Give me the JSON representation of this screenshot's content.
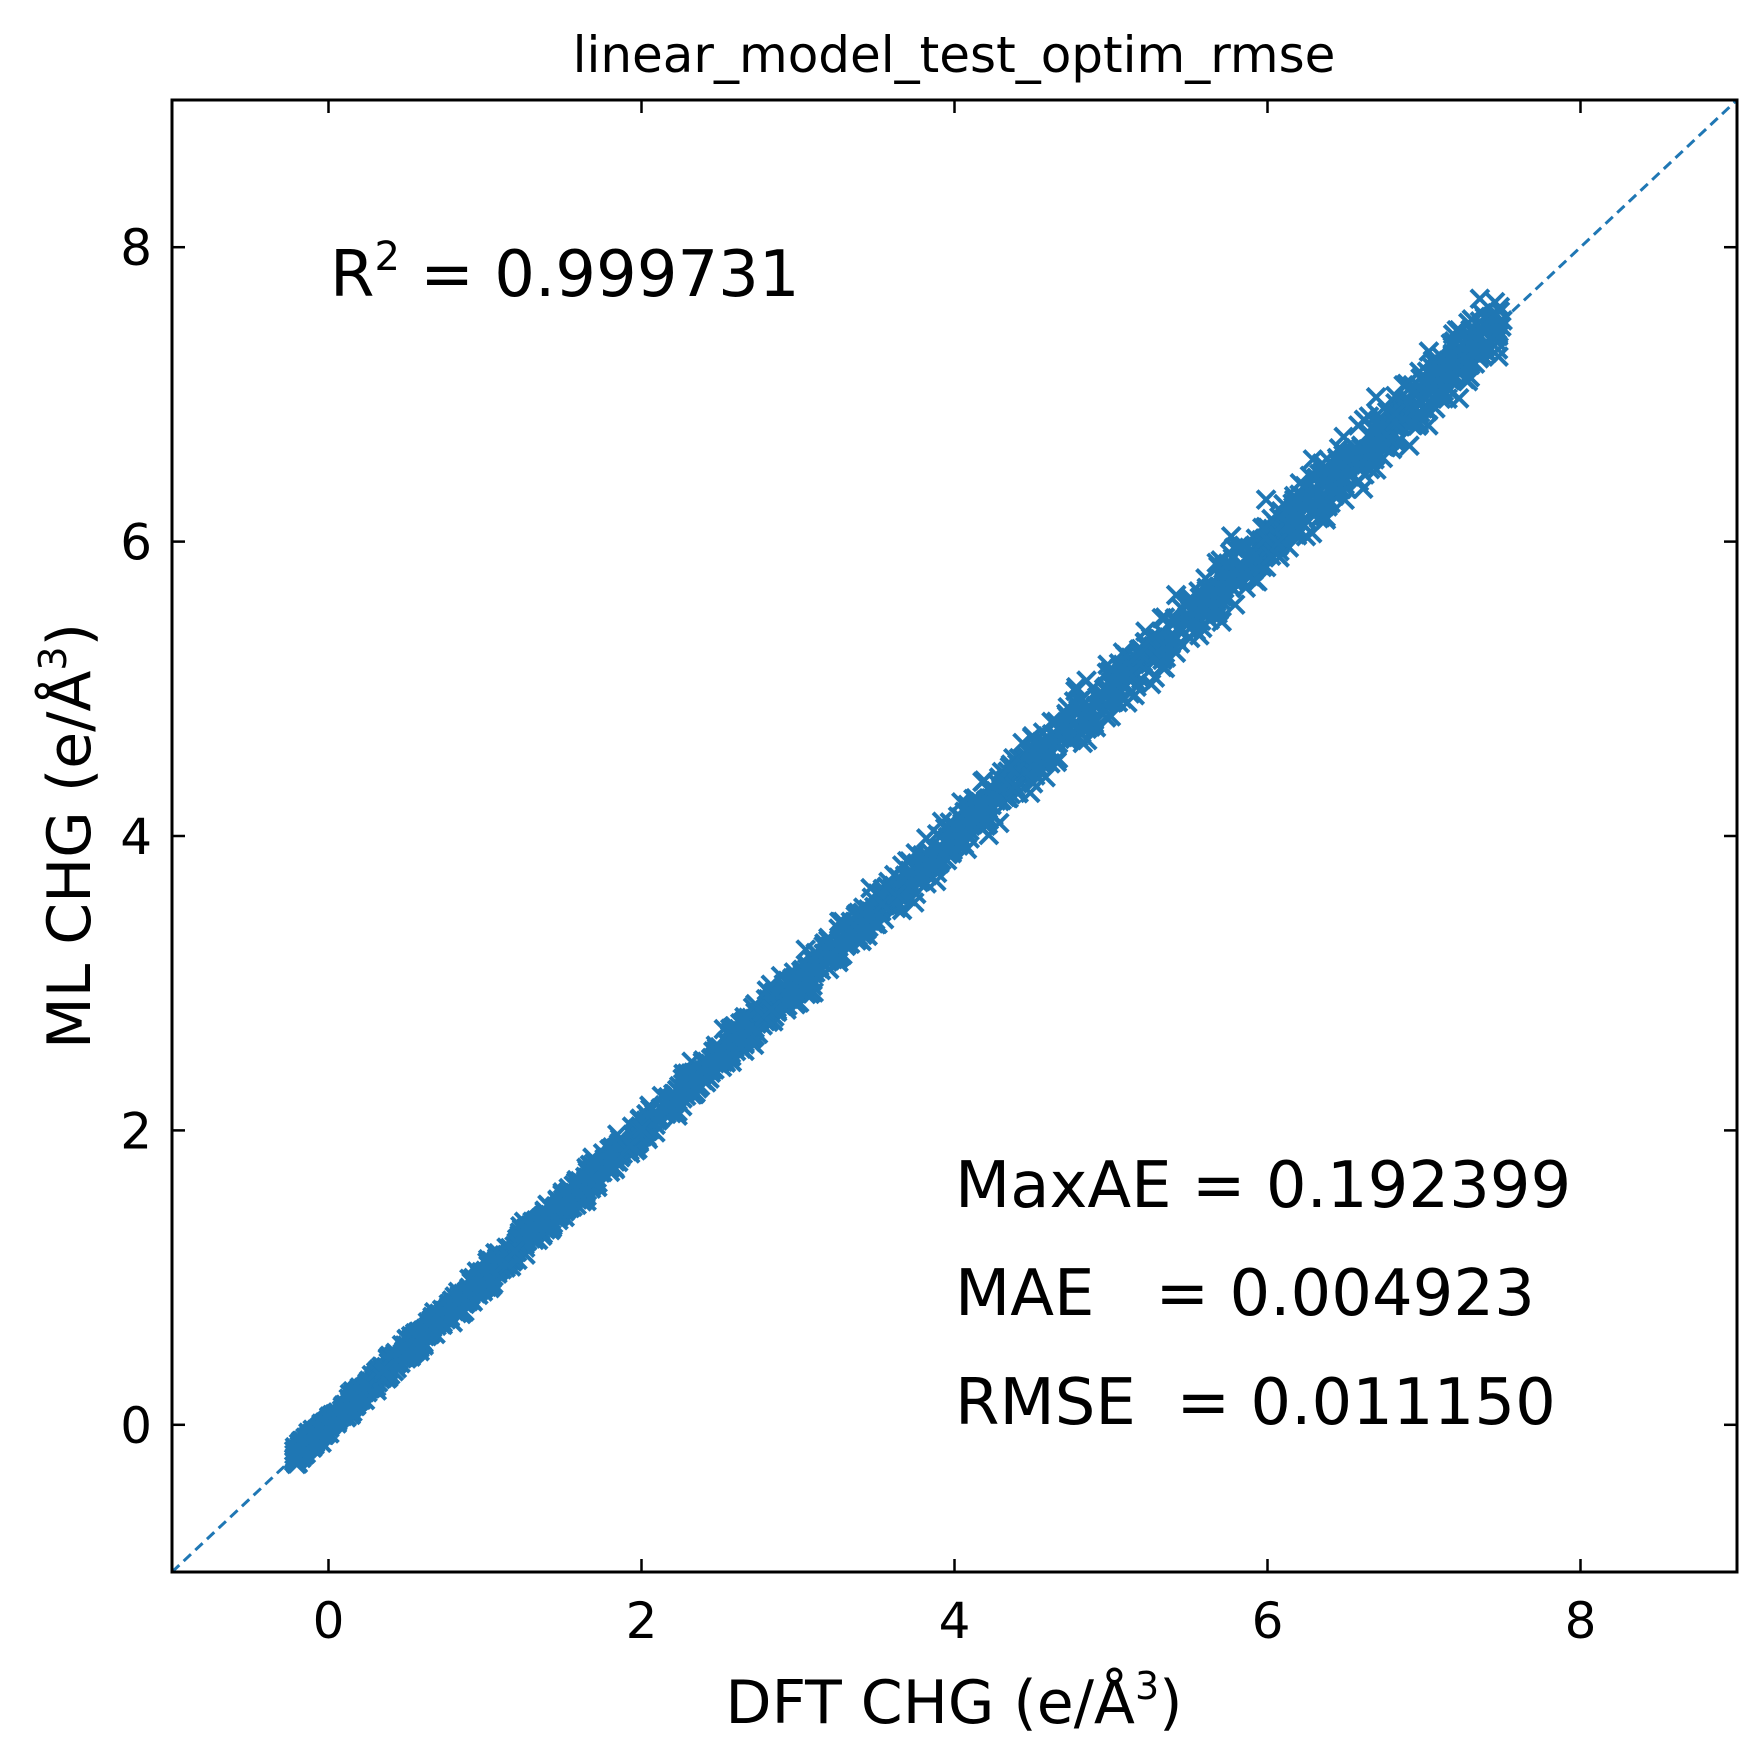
{
  "chart_data": {
    "type": "scatter",
    "title": "linear_model_test_optim_rmse",
    "xlabel": {
      "pre": "DFT CHG (e/Å",
      "sup": "3",
      "post": ")"
    },
    "ylabel": {
      "pre": "ML CHG (e/Å",
      "sup": "3",
      "post": ")"
    },
    "xlim": [
      -1.0,
      9.0
    ],
    "ylim": [
      -1.0,
      9.0
    ],
    "xticks": [
      "0",
      "2",
      "4",
      "6",
      "8"
    ],
    "yticks": [
      "0",
      "2",
      "4",
      "6",
      "8"
    ],
    "xtick_values": [
      0,
      2,
      4,
      6,
      8
    ],
    "ytick_values": [
      0,
      2,
      4,
      6,
      8
    ],
    "grid": false,
    "marker": "x",
    "series_color": "#1f77b4",
    "diagonal": {
      "from": [
        -1.0,
        -1.0
      ],
      "to": [
        9.0,
        9.0
      ],
      "style": "dashed",
      "color": "#1f77b4"
    },
    "data_range": {
      "min": -0.2,
      "max": 7.5
    },
    "annotations": {
      "r2": {
        "label": "R",
        "sup": "2",
        "text": " = 0.999731"
      },
      "maxae": "MaxAE = 0.192399",
      "mae": "MAE   = 0.004923",
      "rmse": "RMSE  = 0.011150"
    }
  }
}
